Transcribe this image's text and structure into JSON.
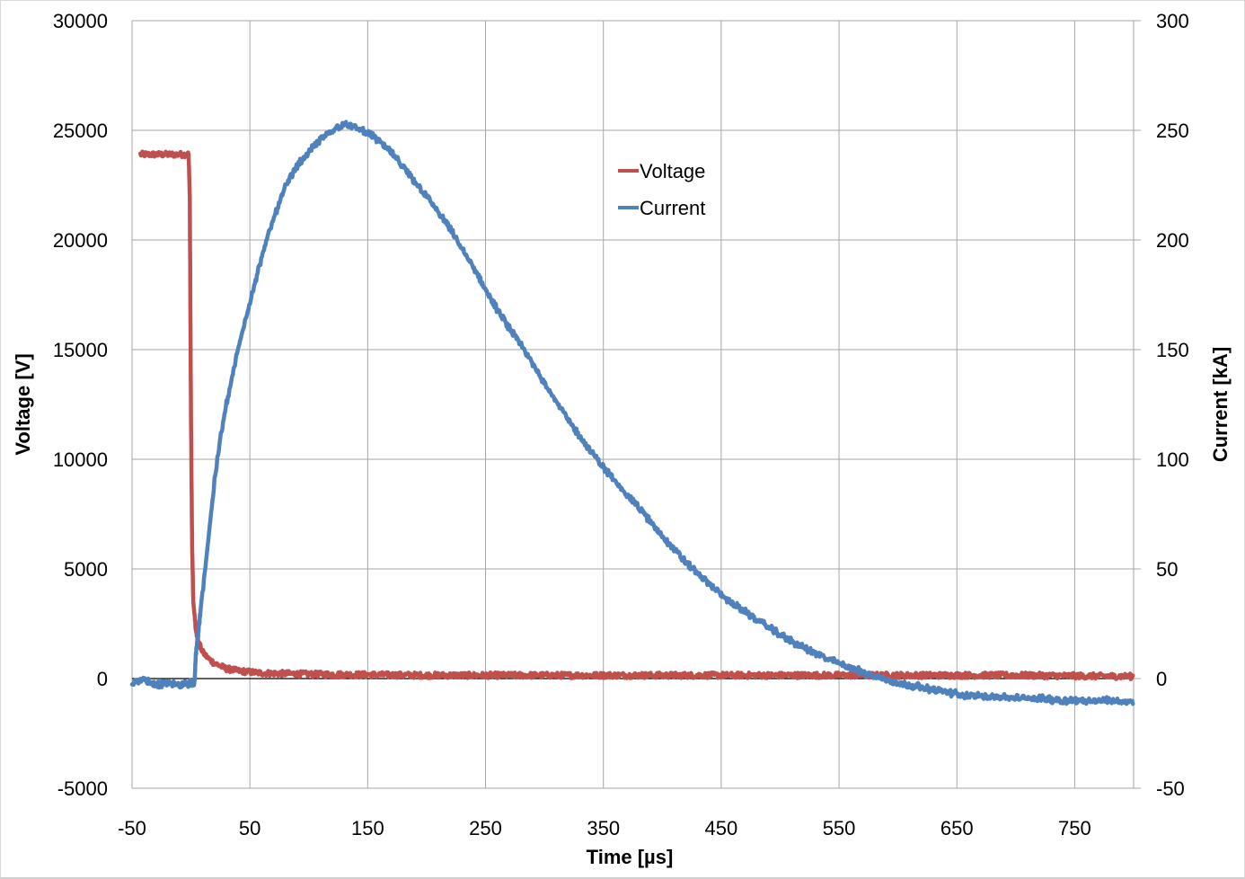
{
  "chart_data": {
    "type": "line",
    "title": "",
    "xlabel": "Time [µs]",
    "ylabel": "Voltage [V]",
    "y2label": "Current [kA]",
    "xlim": [
      -50,
      800
    ],
    "ylim": [
      -5000,
      30000
    ],
    "y2lim": [
      -50,
      300
    ],
    "x_ticks": [
      -50,
      50,
      150,
      250,
      350,
      450,
      550,
      650,
      750
    ],
    "y_ticks": [
      -5000,
      0,
      5000,
      10000,
      15000,
      20000,
      25000,
      30000
    ],
    "y2_ticks": [
      -50,
      0,
      50,
      100,
      150,
      200,
      250,
      300
    ],
    "x_tick_labels": [
      "-50",
      "50",
      "150",
      "250",
      "350",
      "450",
      "550",
      "650",
      "750"
    ],
    "y_tick_labels": [
      "-5000",
      "0",
      "5000",
      "10000",
      "15000",
      "20000",
      "25000",
      "30000"
    ],
    "y2_tick_labels": [
      "-50",
      "0",
      "50",
      "100",
      "150",
      "200",
      "250",
      "300"
    ],
    "grid": true,
    "legend_position": "upper-center",
    "series": [
      {
        "name": "Voltage",
        "axis": "left",
        "color": "#c0504d",
        "x": [
          -43,
          -30,
          -15,
          -2,
          -1,
          0,
          1,
          2,
          4,
          6,
          10,
          15,
          20,
          30,
          40,
          60,
          100,
          200,
          300,
          400,
          500,
          600,
          700,
          800
        ],
        "y": [
          23900,
          23900,
          23900,
          23900,
          22000,
          12000,
          6000,
          3500,
          2300,
          1700,
          1200,
          900,
          700,
          450,
          350,
          250,
          200,
          150,
          150,
          150,
          150,
          150,
          150,
          100
        ]
      },
      {
        "name": "Current",
        "axis": "right",
        "color": "#4f81bd",
        "x": [
          -50,
          -40,
          -30,
          -20,
          -10,
          0,
          3,
          4,
          6,
          10,
          15,
          20,
          25,
          30,
          40,
          50,
          60,
          70,
          80,
          90,
          100,
          110,
          120,
          130,
          140,
          150,
          160,
          170,
          180,
          200,
          220,
          240,
          260,
          280,
          300,
          320,
          340,
          360,
          380,
          400,
          420,
          440,
          460,
          480,
          500,
          520,
          540,
          560,
          580,
          600,
          620,
          640,
          660,
          680,
          700,
          720,
          740,
          760,
          780,
          800
        ],
        "y": [
          -2,
          0,
          -3,
          -2,
          -3,
          -2,
          -2,
          10,
          20,
          40,
          65,
          90,
          110,
          125,
          150,
          172,
          192,
          210,
          224,
          234,
          240,
          246,
          250,
          253,
          251,
          249,
          245,
          240,
          233,
          220,
          205,
          187,
          168,
          152,
          135,
          118,
          103,
          90,
          78,
          65,
          53,
          43,
          34,
          27,
          20,
          14,
          9,
          5,
          1,
          -2,
          -4,
          -6,
          -8,
          -8,
          -9,
          -9,
          -10,
          -10,
          -10,
          -11
        ]
      }
    ]
  },
  "axes": {
    "x_title": "Time [µs]",
    "y_left_title": "Voltage [V]",
    "y_right_title": "Current [kA]"
  },
  "legend": {
    "items": [
      {
        "label": "Voltage",
        "color": "#c0504d"
      },
      {
        "label": "Current",
        "color": "#4f81bd"
      }
    ]
  }
}
